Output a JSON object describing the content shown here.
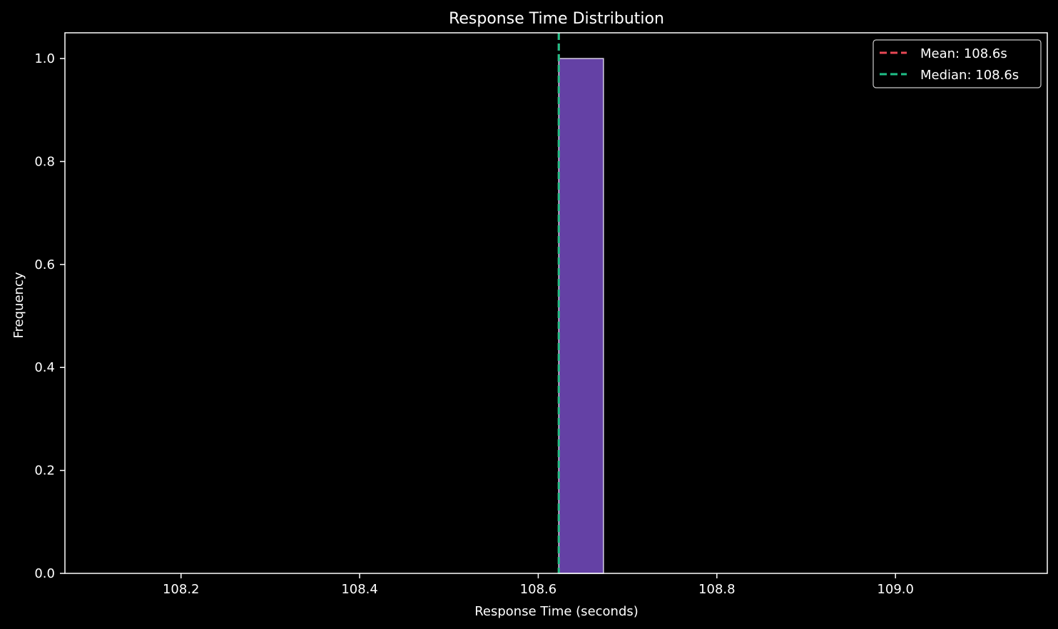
{
  "chart_data": {
    "type": "bar",
    "title": "Response Time Distribution",
    "xlabel": "Response Time (seconds)",
    "ylabel": "Frequency",
    "xlim": [
      108.07,
      109.17
    ],
    "ylim": [
      0,
      1.05
    ],
    "x_ticks": [
      108.2,
      108.4,
      108.6,
      108.8,
      109.0
    ],
    "x_tick_labels": [
      "108.2",
      "108.4",
      "108.6",
      "108.8",
      "109.0"
    ],
    "y_ticks": [
      0.0,
      0.2,
      0.4,
      0.6,
      0.8,
      1.0
    ],
    "y_tick_labels": [
      "0.0",
      "0.2",
      "0.4",
      "0.6",
      "0.8",
      "1.0"
    ],
    "bins": [
      {
        "start": 108.623,
        "end": 108.673,
        "count": 1
      }
    ],
    "mean": {
      "value": 108.623,
      "label": "Mean: 108.6s",
      "color": "#e84855"
    },
    "median": {
      "value": 108.623,
      "label": "Median: 108.6s",
      "color": "#1fbf87"
    },
    "bar_color": "#6441a5",
    "bar_edge_color": "#d8cfe8",
    "grid": false,
    "legend_position": "top-right"
  }
}
